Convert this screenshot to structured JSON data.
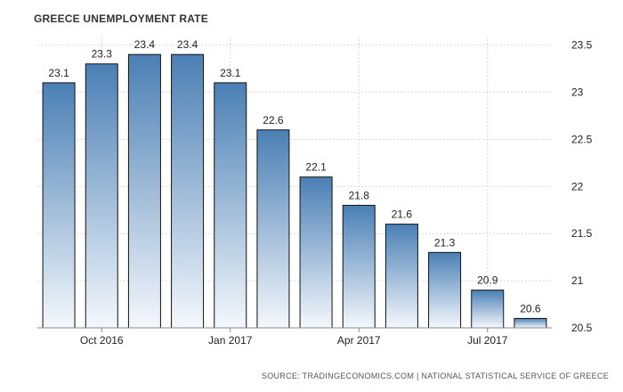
{
  "title": "GREECE UNEMPLOYMENT RATE",
  "source": "SOURCE: TRADINGECONOMICS.COM | NATIONAL STATISTICAL SERVICE OF GREECE",
  "colors": {
    "bar_top": "#4a7fb5",
    "bar_bottom": "#f4f8fc",
    "bar_stroke": "#111111",
    "grid": "#d9d9d9"
  },
  "chart_data": {
    "type": "bar",
    "title": "GREECE UNEMPLOYMENT RATE",
    "values": [
      23.1,
      23.3,
      23.4,
      23.4,
      23.1,
      22.6,
      22.1,
      21.8,
      21.6,
      21.3,
      20.9,
      20.6
    ],
    "data_labels": [
      "23.1",
      "23.3",
      "23.4",
      "23.4",
      "23.1",
      "22.6",
      "22.1",
      "21.8",
      "21.6",
      "21.3",
      "20.9",
      "20.6"
    ],
    "x_tick_labels": [
      {
        "label": "Oct 2016",
        "at_index": 1
      },
      {
        "label": "Jan 2017",
        "at_index": 4
      },
      {
        "label": "Apr 2017",
        "at_index": 7
      },
      {
        "label": "Jul 2017",
        "at_index": 10
      }
    ],
    "y_ticks": [
      20.5,
      21,
      21.5,
      22,
      22.5,
      23,
      23.5
    ],
    "y_tick_labels": [
      "20.5",
      "21",
      "21.5",
      "22",
      "22.5",
      "23",
      "23.5"
    ],
    "ylim": [
      20.5,
      23.6
    ],
    "y_axis_side": "right",
    "grid": true
  }
}
